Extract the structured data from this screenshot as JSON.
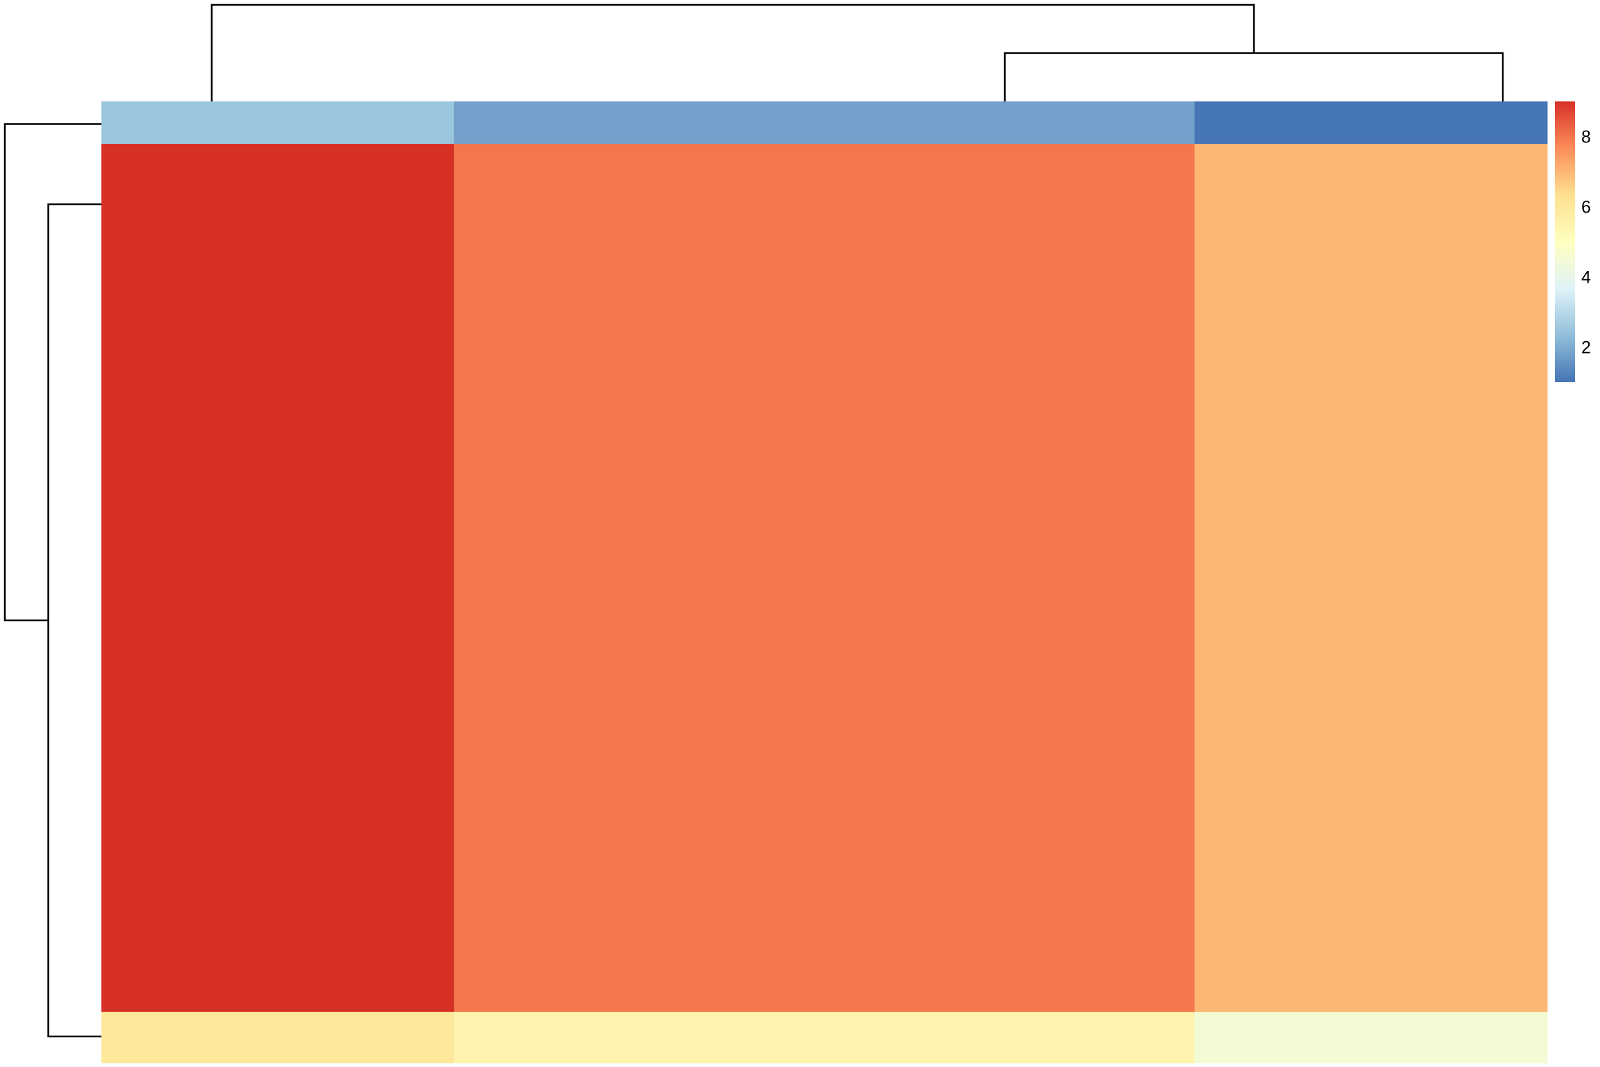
{
  "chart_data": {
    "type": "heatmap",
    "title": "",
    "xlabel": "",
    "ylabel": "",
    "n_rows": 3,
    "n_cols": 3,
    "column_widths_relative": [
      1,
      2.1,
      1
    ],
    "row_heights_relative": [
      1,
      20.5,
      1.2
    ],
    "values": [
      [
        2.5,
        1.8,
        1.0
      ],
      [
        9.0,
        8.0,
        7.0
      ],
      [
        6.0,
        5.5,
        4.5
      ]
    ],
    "color_scale": {
      "min": 1,
      "max": 9,
      "stops": [
        "#4575B4",
        "#91BFDB",
        "#E0F3F8",
        "#FFFFBF",
        "#FEE090",
        "#FC8D59",
        "#D73027"
      ]
    },
    "legend": {
      "position": "right",
      "ticks": [
        "2",
        "4",
        "6",
        "8"
      ],
      "tick_values": [
        2,
        4,
        6,
        8
      ]
    },
    "row_dendrogram": {
      "merges": [
        [
          2,
          3
        ],
        [
          1,
          "2+3"
        ]
      ],
      "relative_heights": [
        0.55,
        1.0
      ]
    },
    "column_dendrogram": {
      "merges": [
        [
          2,
          3
        ],
        [
          1,
          "2+3"
        ]
      ],
      "relative_heights": [
        0.5,
        1.0
      ]
    },
    "grid": false,
    "row_labels": [],
    "column_labels": []
  }
}
